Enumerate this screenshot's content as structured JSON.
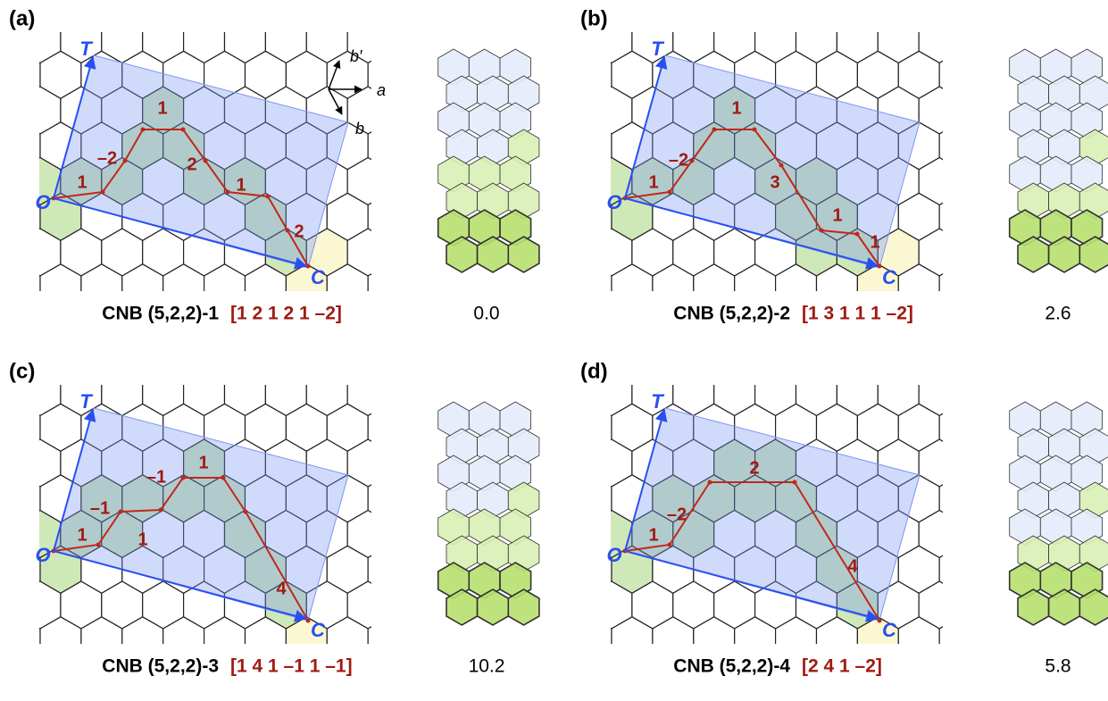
{
  "panels": [
    {
      "label": "(a)",
      "t": "T",
      "o": "O",
      "c": "C",
      "path_numbers": [
        "1",
        "–2",
        "1",
        "2",
        "1",
        "2"
      ],
      "caption": "CNB (5,2,2)-1",
      "sequence": "[1 2 1 2 1 –2]",
      "energy": "0.0",
      "vectors": [
        "b′",
        "a",
        "b"
      ]
    },
    {
      "label": "(b)",
      "t": "T",
      "o": "O",
      "c": "C",
      "path_numbers": [
        "1",
        "–2",
        "1",
        "3",
        "1",
        "1"
      ],
      "caption": "CNB (5,2,2)-2",
      "sequence": "[1 3 1 1 1 –2]",
      "energy": "2.6"
    },
    {
      "label": "(c)",
      "t": "T",
      "o": "O",
      "c": "C",
      "path_numbers": [
        "1",
        "–1",
        "1",
        "–1",
        "1",
        "4"
      ],
      "caption": "CNB (5,2,2)-3",
      "sequence": "[1 4 1 –1 1 –1]",
      "energy": "10.2"
    },
    {
      "label": "(d)",
      "t": "T",
      "o": "O",
      "c": "C",
      "path_numbers": [
        "1",
        "–2",
        "2",
        "4"
      ],
      "caption": "CNB (5,2,2)-4",
      "sequence": "[2 4 1 –2]",
      "energy": "5.8"
    }
  ]
}
